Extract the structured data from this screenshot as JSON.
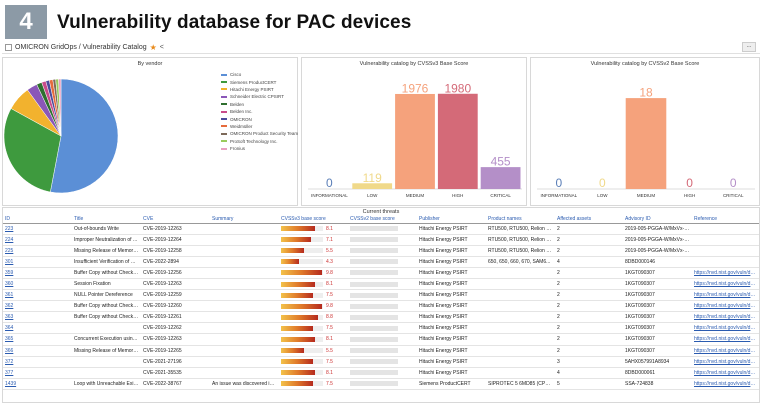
{
  "figure": {
    "number": "4",
    "headline": "Vulnerability database for PAC devices"
  },
  "breadcrumb": {
    "text": "OMICRON GridOps / Vulnerability Catalog",
    "toolbar_icon": "..."
  },
  "panels": {
    "vendor": {
      "title": "By vendor"
    },
    "cvss3": {
      "title": "Vulnerability catalog by CVSSv3 Base Score"
    },
    "cvss2": {
      "title": "Vulnerability catalog by CVSSv2 Base Score"
    }
  },
  "chart_data": [
    {
      "type": "pie",
      "title": "By vendor",
      "labels": [
        "Cisco",
        "Siemens ProductCERT",
        "Hitachi Energy PSIRT",
        "Schneider Electric CPSIRT",
        "Belden",
        "Belden Inc.",
        "OMICRON",
        "Weidmüller",
        "OMICRON Product Security Team",
        "ProSoft Technology Inc.",
        "Fronius"
      ],
      "values": [
        53,
        30,
        7,
        3,
        1.5,
        1.2,
        1,
        1,
        0.8,
        0.8,
        0.7
      ],
      "colors": [
        "#5b8fd6",
        "#3e9a3e",
        "#f2b22e",
        "#8a57b8",
        "#2f6f2f",
        "#c94c8a",
        "#4b4b9b",
        "#e66b3c",
        "#7d6a5a",
        "#9acb5c",
        "#e8a0c0"
      ],
      "legend": "right"
    },
    {
      "type": "bar",
      "title": "Vulnerability catalog by CVSSv3 Base Score",
      "categories": [
        "INFORMATIONAL",
        "LOW",
        "MEDIUM",
        "HIGH",
        "CRITICAL"
      ],
      "values": [
        0,
        119,
        1976,
        1980,
        455
      ],
      "colors": [
        "#5b7fb8",
        "#f0d98a",
        "#f5a27c",
        "#d46a78",
        "#b48fc8"
      ],
      "ylim": [
        0,
        2100
      ]
    },
    {
      "type": "bar",
      "title": "Vulnerability catalog by CVSSv2 Base Score",
      "categories": [
        "INFORMATIONAL",
        "LOW",
        "MEDIUM",
        "HIGH",
        "CRITICAL"
      ],
      "values": [
        0,
        0,
        18,
        0,
        0
      ],
      "colors": [
        "#5b7fb8",
        "#f0d98a",
        "#f5a27c",
        "#d46a78",
        "#b48fc8"
      ],
      "ylim": [
        0,
        20
      ]
    }
  ],
  "table": {
    "title": "Current threats",
    "columns": [
      "ID",
      "Title",
      "CVE",
      "Summary",
      "CVSSv3 base score",
      "CVSSv2 base score",
      "Publisher",
      "Product names",
      "Affected assets",
      "Advisory ID",
      "Reference"
    ],
    "rows": [
      {
        "id": "223",
        "title": "Out-of-bounds Write",
        "cve": "CVE-2019-12263",
        "summary": "",
        "v3": 8.1,
        "v3_label": "8.1",
        "publisher": "Hitachi Energy PSIRT",
        "product": "RTU500, RTU500, Relion 670...",
        "assets": "2",
        "advisory": "2019-005-PGGA-W/MxVx-IPN...",
        "ref": ""
      },
      {
        "id": "224",
        "title": "Improper Neutralization of A...",
        "cve": "CVE-2019-12264",
        "summary": "",
        "v3": 7.1,
        "v3_label": "7.1",
        "publisher": "Hitachi Energy PSIRT",
        "product": "RTU500, RTU500, Relion 670...",
        "assets": "2",
        "advisory": "2019-005-PGGA-W/MxVx-IPN...",
        "ref": ""
      },
      {
        "id": "225",
        "title": "Missing Release of Memory a...",
        "cve": "CVE-2019-12258",
        "summary": "",
        "v3": 5.5,
        "v3_label": "5.5",
        "publisher": "Hitachi Energy PSIRT",
        "product": "RTU500, RTU500, Relion 670...",
        "assets": "2",
        "advisory": "2019-005-PGGA-W/MxVx-IPN...",
        "ref": ""
      },
      {
        "id": "301",
        "title": "Insufficient Verification of Dat...",
        "cve": "CVE-2022-2894",
        "summary": "",
        "v3": 4.3,
        "v3_label": "4.3",
        "publisher": "Hitachi Energy PSIRT",
        "product": "650, 650, 660, 670, SAM6...",
        "assets": "4",
        "advisory": "8DBD000146",
        "ref": ""
      },
      {
        "id": "359",
        "title": "Buffer Copy without Checking ...",
        "cve": "CVE-2019-12256",
        "summary": "",
        "v3": 9.8,
        "v3_label": "9.8",
        "publisher": "Hitachi Energy PSIRT",
        "product": "",
        "assets": "2",
        "advisory": "1KGT090307",
        "ref": "https://nvd.nist.gov/vuln/detail"
      },
      {
        "id": "360",
        "title": "Session Fixation",
        "cve": "CVE-2019-12263",
        "summary": "",
        "v3": 8.1,
        "v3_label": "8.1",
        "publisher": "Hitachi Energy PSIRT",
        "product": "",
        "assets": "2",
        "advisory": "1KGT090307",
        "ref": "https://nvd.nist.gov/vuln/detail"
      },
      {
        "id": "361",
        "title": "NULL Pointer Dereference",
        "cve": "CVE-2019-12259",
        "summary": "",
        "v3": 7.5,
        "v3_label": "7.5",
        "publisher": "Hitachi Energy PSIRT",
        "product": "",
        "assets": "2",
        "advisory": "1KGT090307",
        "ref": "https://nvd.nist.gov/vuln/detail"
      },
      {
        "id": "362",
        "title": "Buffer Copy without Checking ...",
        "cve": "CVE-2019-12260",
        "summary": "",
        "v3": 9.8,
        "v3_label": "9.8",
        "publisher": "Hitachi Energy PSIRT",
        "product": "",
        "assets": "2",
        "advisory": "1KGT090307",
        "ref": "https://nvd.nist.gov/vuln/detail"
      },
      {
        "id": "363",
        "title": "Buffer Copy without Checking ...",
        "cve": "CVE-2019-12261",
        "summary": "",
        "v3": 8.8,
        "v3_label": "8.8",
        "publisher": "Hitachi Energy PSIRT",
        "product": "",
        "assets": "2",
        "advisory": "1KGT090307",
        "ref": "https://nvd.nist.gov/vuln/detail"
      },
      {
        "id": "364",
        "title": "",
        "cve": "CVE-2019-12262",
        "summary": "",
        "v3": 7.5,
        "v3_label": "7.5",
        "publisher": "Hitachi Energy PSIRT",
        "product": "",
        "assets": "2",
        "advisory": "1KGT090307",
        "ref": "https://nvd.nist.gov/vuln/detail"
      },
      {
        "id": "365",
        "title": "Concurrent Execution using S...",
        "cve": "CVE-2019-12263",
        "summary": "",
        "v3": 8.1,
        "v3_label": "8.1",
        "publisher": "Hitachi Energy PSIRT",
        "product": "",
        "assets": "2",
        "advisory": "1KGT090307",
        "ref": "https://nvd.nist.gov/vuln/detail"
      },
      {
        "id": "366",
        "title": "Missing Release of Memory a...",
        "cve": "CVE-2019-12265",
        "summary": "",
        "v3": 5.5,
        "v3_label": "5.5",
        "publisher": "Hitachi Energy PSIRT",
        "product": "",
        "assets": "2",
        "advisory": "1KGT090307",
        "ref": "https://nvd.nist.gov/vuln/detail"
      },
      {
        "id": "372",
        "title": "",
        "cve": "CVE-2021-27196",
        "summary": "",
        "v3": 7.5,
        "v3_label": "7.5",
        "publisher": "Hitachi Energy PSIRT",
        "product": "",
        "assets": "3",
        "advisory": "5AHX057991A8934",
        "ref": "https://nvd.nist.gov/vuln/detail"
      },
      {
        "id": "377",
        "title": "",
        "cve": "CVE-2021-35535",
        "summary": "",
        "v3": 8.1,
        "v3_label": "8.1",
        "publisher": "Hitachi Energy PSIRT",
        "product": "",
        "assets": "4",
        "advisory": "8DBD000061",
        "ref": "https://nvd.nist.gov/vuln/detail"
      },
      {
        "id": "1439",
        "title": "Loop with Unreachable Exit C...",
        "cve": "CVE-2022-38767",
        "summary": "An issue was discovered in W...",
        "v3": 7.5,
        "v3_label": "7.5",
        "publisher": "Siemens ProductCERT",
        "product": "SIPROTEC 5 6MD85 (CP300)...",
        "assets": "5",
        "advisory": "SSA-724838",
        "ref": "https://nvd.nist.gov/vuln/detail"
      }
    ]
  }
}
